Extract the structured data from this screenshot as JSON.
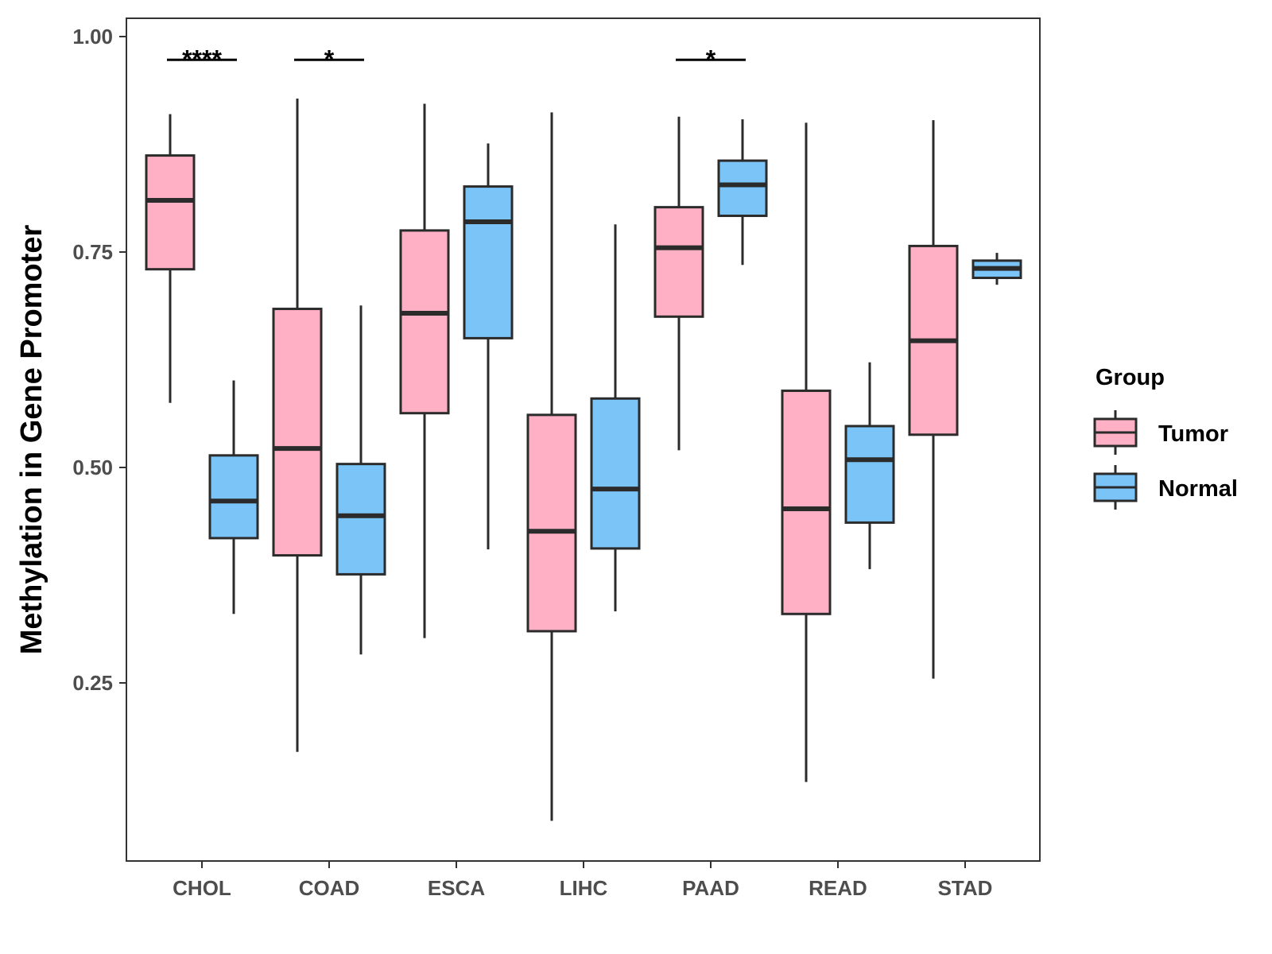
{
  "chart_data": {
    "type": "boxplot",
    "title": "",
    "xlabel": "",
    "ylabel": "Methylation in Gene Promoter",
    "ylim": [
      0.05,
      1.02
    ],
    "yticks": [
      0.25,
      0.5,
      0.75,
      1.0
    ],
    "ytick_labels": [
      "0.25",
      "0.50",
      "0.75",
      "1.00"
    ],
    "grid": false,
    "categories": [
      "CHOL",
      "COAD",
      "ESCA",
      "LIHC",
      "PAAD",
      "READ",
      "STAD"
    ],
    "legend": {
      "title": "Group",
      "position": "right",
      "entries": [
        {
          "label": "Tumor",
          "color": "#FFB0C4"
        },
        {
          "label": "Normal",
          "color": "#7BC4F8"
        }
      ]
    },
    "series": [
      {
        "name": "Tumor",
        "color": "#FFB0C4",
        "boxes": [
          {
            "category": "CHOL",
            "min": 0.575,
            "q1": 0.73,
            "median": 0.81,
            "q3": 0.862,
            "max": 0.91
          },
          {
            "category": "COAD",
            "min": 0.17,
            "q1": 0.398,
            "median": 0.522,
            "q3": 0.684,
            "max": 0.928
          },
          {
            "category": "ESCA",
            "min": 0.302,
            "q1": 0.563,
            "median": 0.679,
            "q3": 0.775,
            "max": 0.922
          },
          {
            "category": "LIHC",
            "min": 0.09,
            "q1": 0.31,
            "median": 0.426,
            "q3": 0.561,
            "max": 0.912
          },
          {
            "category": "PAAD",
            "min": 0.52,
            "q1": 0.675,
            "median": 0.755,
            "q3": 0.802,
            "max": 0.907
          },
          {
            "category": "READ",
            "min": 0.135,
            "q1": 0.33,
            "median": 0.452,
            "q3": 0.589,
            "max": 0.9
          },
          {
            "category": "STAD",
            "min": 0.255,
            "q1": 0.538,
            "median": 0.647,
            "q3": 0.757,
            "max": 0.903
          }
        ]
      },
      {
        "name": "Normal",
        "color": "#7BC4F8",
        "boxes": [
          {
            "category": "CHOL",
            "min": 0.33,
            "q1": 0.418,
            "median": 0.461,
            "q3": 0.514,
            "max": 0.601
          },
          {
            "category": "COAD",
            "min": 0.283,
            "q1": 0.376,
            "median": 0.444,
            "q3": 0.504,
            "max": 0.688
          },
          {
            "category": "ESCA",
            "min": 0.405,
            "q1": 0.65,
            "median": 0.785,
            "q3": 0.826,
            "max": 0.876
          },
          {
            "category": "LIHC",
            "min": 0.333,
            "q1": 0.406,
            "median": 0.475,
            "q3": 0.58,
            "max": 0.782
          },
          {
            "category": "PAAD",
            "min": 0.735,
            "q1": 0.792,
            "median": 0.828,
            "q3": 0.856,
            "max": 0.904
          },
          {
            "category": "READ",
            "min": 0.382,
            "q1": 0.436,
            "median": 0.509,
            "q3": 0.548,
            "max": 0.622
          },
          {
            "category": "STAD",
            "min": 0.712,
            "q1": 0.72,
            "median": 0.731,
            "q3": 0.74,
            "max": 0.749
          }
        ]
      }
    ],
    "annotations": [
      {
        "category": "CHOL",
        "label": "****",
        "y": 0.973
      },
      {
        "category": "COAD",
        "label": "*",
        "y": 0.973
      },
      {
        "category": "PAAD",
        "label": "*",
        "y": 0.973
      }
    ]
  }
}
